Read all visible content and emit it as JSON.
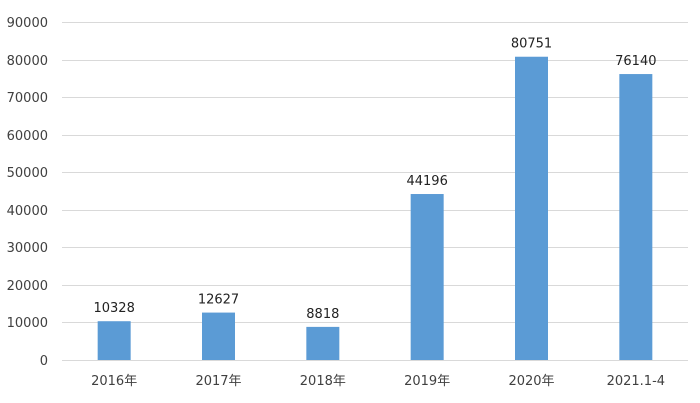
{
  "chart_data": {
    "type": "bar",
    "categories": [
      "2016年",
      "2017年",
      "2018年",
      "2019年",
      "2020年",
      "2021.1-4"
    ],
    "values": [
      10328,
      12627,
      8818,
      44196,
      80751,
      76140
    ],
    "title": "",
    "xlabel": "",
    "ylabel": "",
    "ylim": [
      0,
      90000
    ],
    "yticks": [
      0,
      10000,
      20000,
      30000,
      40000,
      50000,
      60000,
      70000,
      80000,
      90000
    ],
    "grid": true,
    "legend": "none",
    "bar_color": "#5B9BD5",
    "grid_color": "#D9D9D9"
  }
}
